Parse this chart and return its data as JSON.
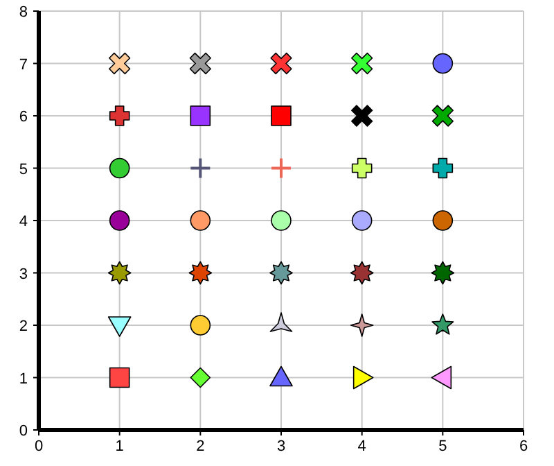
{
  "chart_data": {
    "type": "scatter",
    "xlim": [
      0,
      6
    ],
    "ylim": [
      0,
      8
    ],
    "xticks": [
      0,
      1,
      2,
      3,
      4,
      5,
      6
    ],
    "yticks": [
      0,
      1,
      2,
      3,
      4,
      5,
      6,
      7,
      8
    ],
    "grid": true,
    "series": [
      {
        "x": [
          1
        ],
        "values": [
          7
        ],
        "color": "#ffcc99",
        "marker": "x"
      },
      {
        "x": [
          2
        ],
        "values": [
          7
        ],
        "color": "#999999",
        "marker": "x"
      },
      {
        "x": [
          3
        ],
        "values": [
          7
        ],
        "color": "#ff3333",
        "marker": "x"
      },
      {
        "x": [
          4
        ],
        "values": [
          7
        ],
        "color": "#33ff33",
        "marker": "x"
      },
      {
        "x": [
          5
        ],
        "values": [
          7
        ],
        "color": "#6666ff"
      },
      {
        "x": [
          1
        ],
        "values": [
          6
        ],
        "color": "#dd3333",
        "marker": "cross"
      },
      {
        "x": [
          2
        ],
        "values": [
          6
        ],
        "color": "#9933ff",
        "marker": "square"
      },
      {
        "x": [
          3
        ],
        "values": [
          6
        ],
        "color": "#ff0000",
        "marker": "square"
      },
      {
        "x": [
          4
        ],
        "values": [
          6
        ],
        "color": "#000000",
        "marker": "x"
      },
      {
        "x": [
          5
        ],
        "values": [
          6
        ],
        "color": "#00aa00",
        "marker": "x"
      },
      {
        "x": [
          1
        ],
        "values": [
          5
        ],
        "color": "#33cc33",
        "marker": "circle"
      },
      {
        "x": [
          2
        ],
        "values": [
          5
        ],
        "color": "#555577",
        "marker": "plus"
      },
      {
        "x": [
          3
        ],
        "values": [
          5
        ],
        "color": "#ee6655",
        "marker": "plus"
      },
      {
        "x": [
          4
        ],
        "values": [
          5
        ],
        "color": "#ccff66",
        "marker": "cross"
      },
      {
        "x": [
          5
        ],
        "values": [
          5
        ],
        "color": "#00aaaa",
        "marker": "cross"
      },
      {
        "x": [
          1
        ],
        "values": [
          4
        ],
        "color": "#990099"
      },
      {
        "x": [
          2
        ],
        "values": [
          4
        ],
        "color": "#ff9966"
      },
      {
        "x": [
          3
        ],
        "values": [
          4
        ],
        "color": "#aaffaa"
      },
      {
        "x": [
          4
        ],
        "values": [
          4
        ],
        "color": "#aaaaff"
      },
      {
        "x": [
          5
        ],
        "values": [
          4
        ],
        "color": "#cc6600"
      },
      {
        "x": [
          1
        ],
        "values": [
          3
        ],
        "color": "#999900",
        "marker": "star8"
      },
      {
        "x": [
          2
        ],
        "values": [
          3
        ],
        "color": "#dd4400",
        "marker": "star8"
      },
      {
        "x": [
          3
        ],
        "values": [
          3
        ],
        "color": "#669999",
        "marker": "star8"
      },
      {
        "x": [
          4
        ],
        "values": [
          3
        ],
        "color": "#993333",
        "marker": "star8"
      },
      {
        "x": [
          5
        ],
        "values": [
          3
        ],
        "color": "#006600",
        "marker": "star8"
      },
      {
        "x": [
          1
        ],
        "values": [
          2
        ],
        "color": "#99ffff",
        "marker": "triangle-down"
      },
      {
        "x": [
          2
        ],
        "values": [
          2
        ],
        "color": "#ffcc33",
        "marker": "circle"
      },
      {
        "x": [
          3
        ],
        "values": [
          2
        ],
        "color": "#ccccdd",
        "marker": "star3"
      },
      {
        "x": [
          4
        ],
        "values": [
          2
        ],
        "color": "#cc9999",
        "marker": "star4"
      },
      {
        "x": [
          5
        ],
        "values": [
          2
        ],
        "color": "#339966",
        "marker": "star"
      },
      {
        "x": [
          1
        ],
        "values": [
          1
        ],
        "color": "#ff4444",
        "marker": "square"
      },
      {
        "x": [
          2
        ],
        "values": [
          1
        ],
        "color": "#66ff33",
        "marker": "diamond"
      },
      {
        "x": [
          3
        ],
        "values": [
          1
        ],
        "color": "#6666ff",
        "marker": "triangle"
      },
      {
        "x": [
          4
        ],
        "values": [
          1
        ],
        "color": "#ffff00",
        "marker": "triangle-right"
      },
      {
        "x": [
          5
        ],
        "values": [
          1
        ],
        "color": "#ff99ff",
        "marker": "triangle-left"
      }
    ]
  }
}
